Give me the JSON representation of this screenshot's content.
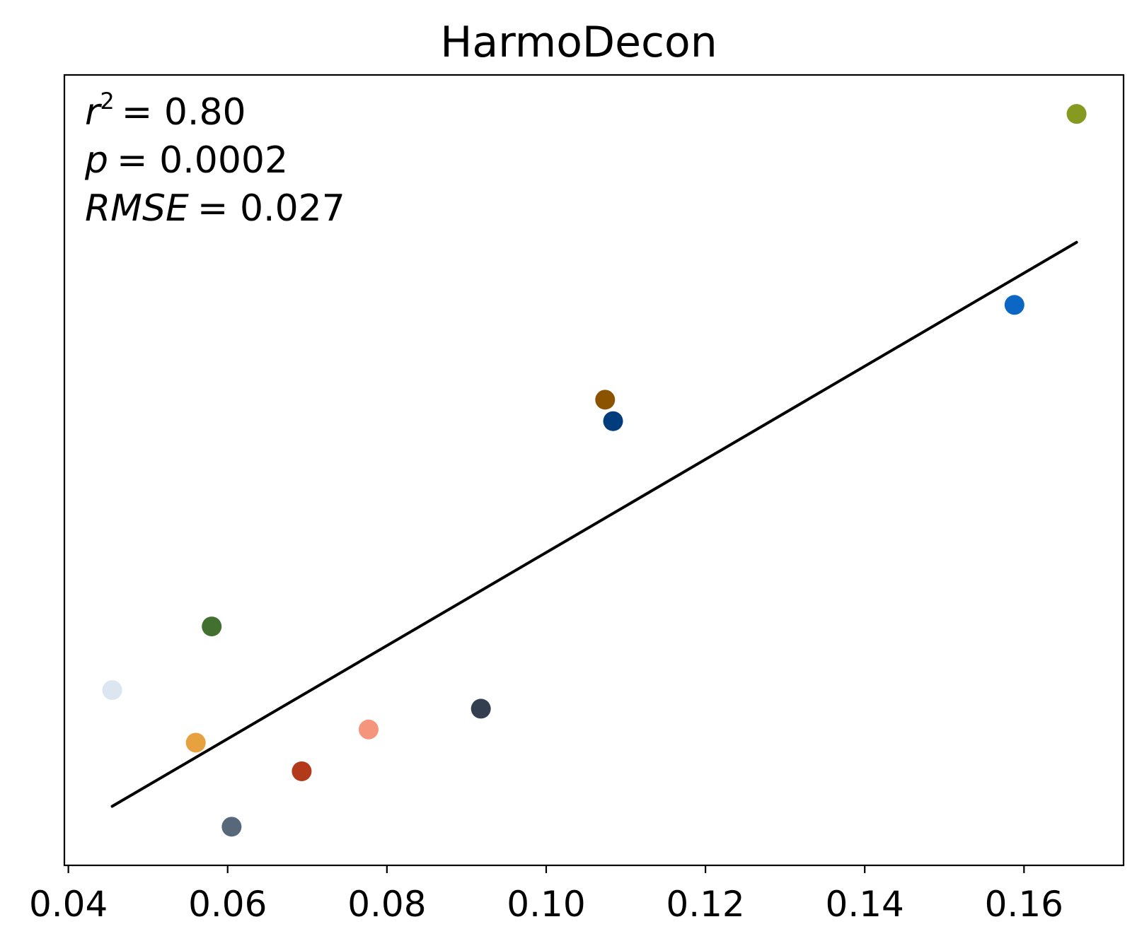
{
  "chart_data": {
    "type": "scatter",
    "title": "HarmoDecon",
    "xlabel": "",
    "ylabel": "",
    "xlim": [
      0.0395,
      0.1725
    ],
    "ylim": [
      -0.022,
      0.199
    ],
    "x_ticks": [
      0.04,
      0.06,
      0.08,
      0.1,
      0.12,
      0.14,
      0.16
    ],
    "x_tick_labels": [
      "0.04",
      "0.06",
      "0.08",
      "0.10",
      "0.12",
      "0.14",
      "0.16"
    ],
    "y_ticks_visible": false,
    "grid": false,
    "legend": "none",
    "points": [
      {
        "x": 0.0455,
        "y": 0.027,
        "color": "#dbe6f1"
      },
      {
        "x": 0.056,
        "y": 0.0123,
        "color": "#e7a23f"
      },
      {
        "x": 0.058,
        "y": 0.0448,
        "color": "#41702f"
      },
      {
        "x": 0.0605,
        "y": -0.0112,
        "color": "#57687a"
      },
      {
        "x": 0.0693,
        "y": 0.0043,
        "color": "#b23a1a"
      },
      {
        "x": 0.0777,
        "y": 0.016,
        "color": "#f5957c"
      },
      {
        "x": 0.0918,
        "y": 0.0218,
        "color": "#333f4e"
      },
      {
        "x": 0.1074,
        "y": 0.1082,
        "color": "#8b5200"
      },
      {
        "x": 0.1084,
        "y": 0.1022,
        "color": "#013d7d"
      },
      {
        "x": 0.1588,
        "y": 0.1347,
        "color": "#0c66c4"
      },
      {
        "x": 0.1666,
        "y": 0.1881,
        "color": "#869a22"
      }
    ],
    "fit_line": {
      "x": [
        0.0455,
        0.1666
      ],
      "y": [
        -0.0055,
        0.1522
      ],
      "color": "#000000"
    },
    "annotations": {
      "r2_symbol": "r",
      "r2_exponent": "2",
      "r2_value": "= 0.80",
      "p_symbol": "p",
      "p_value": "= 0.0002",
      "rmse_symbol": "RMSE",
      "rmse_value": "= 0.027"
    }
  }
}
